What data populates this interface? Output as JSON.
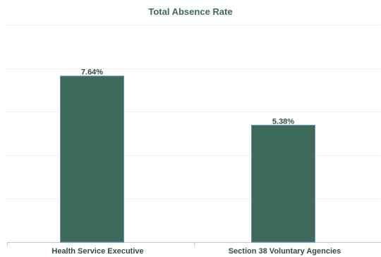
{
  "chart_data": {
    "type": "bar",
    "title": "Total Absence Rate",
    "categories": [
      "Health Service Executive",
      "Section 38 Voluntary Agencies"
    ],
    "values": [
      7.64,
      5.38
    ],
    "value_labels": [
      "7.64%",
      "5.38%"
    ],
    "ylim": [
      0,
      10
    ],
    "y_gridlines": [
      0,
      2,
      4,
      6,
      8,
      10
    ],
    "grid": true,
    "legend": "none",
    "xlabel": "",
    "ylabel": "",
    "bar_color": "#3d6a5b",
    "bar_edge_color": "#6f8fc7"
  }
}
